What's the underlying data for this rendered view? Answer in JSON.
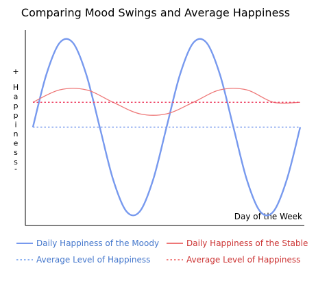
{
  "chart_data": {
    "type": "line",
    "title": "Comparing Mood Swings and Average Happiness",
    "xlabel": "Day of the Week",
    "ylabel": "Happiness",
    "y_axis_markers": {
      "top": "+",
      "bottom": "-"
    },
    "x_axis": {
      "ticks": false,
      "range": [
        0,
        1
      ]
    },
    "y_axis": {
      "ticks": false,
      "range": [
        -1,
        1
      ]
    },
    "grid": false,
    "legend": "bottom",
    "series": [
      {
        "name": "Daily Happiness of the Moody",
        "style": "solid",
        "color": "#7799ee",
        "x": [
          0,
          0.05,
          0.1,
          0.15,
          0.2,
          0.25,
          0.3,
          0.35,
          0.4,
          0.45,
          0.5,
          0.55,
          0.6,
          0.65,
          0.7,
          0.75,
          0.8,
          0.85,
          0.9,
          0.95,
          1
        ],
        "values": [
          0.0,
          0.59,
          0.95,
          0.95,
          0.59,
          0.0,
          -0.59,
          -0.95,
          -0.95,
          -0.59,
          0.0,
          0.59,
          0.95,
          0.95,
          0.59,
          0.0,
          -0.59,
          -0.95,
          -0.95,
          -0.59,
          0.0
        ]
      },
      {
        "name": "Average Level of Happiness",
        "style": "dotted",
        "color": "#7799ee",
        "x": [
          0,
          1
        ],
        "values": [
          0.0,
          0.0
        ]
      },
      {
        "name": "Daily Happiness of the Stable",
        "style": "solid",
        "color": "#ee7777",
        "x": [
          0,
          0.1,
          0.2,
          0.3,
          0.4,
          0.5,
          0.6,
          0.7,
          0.8,
          0.9,
          1
        ],
        "values": [
          0.28,
          0.42,
          0.42,
          0.28,
          0.15,
          0.15,
          0.28,
          0.42,
          0.42,
          0.28,
          0.28
        ]
      },
      {
        "name": "Average Level of Happiness",
        "style": "dotted",
        "color": "#ee4466",
        "x": [
          0,
          1
        ],
        "values": [
          0.28,
          0.28
        ]
      }
    ]
  },
  "ylabel_letters": [
    "H",
    "a",
    "p",
    "p",
    "i",
    "n",
    "e",
    "s",
    "s"
  ],
  "legend": {
    "items": [
      {
        "label": "Daily Happiness of the Moody",
        "color": "#4477cc",
        "line_color": "#7799ee",
        "dash": "solid"
      },
      {
        "label": "Daily Happiness of the Stable",
        "color": "#cc3333",
        "line_color": "#ee7777",
        "dash": "solid"
      },
      {
        "label": "Average Level of Happiness",
        "color": "#4477cc",
        "line_color": "#6699ee",
        "dash": "dotted"
      },
      {
        "label": "Average Level of Happiness",
        "color": "#cc3333",
        "line_color": "#ee5555",
        "dash": "dotted"
      }
    ]
  }
}
